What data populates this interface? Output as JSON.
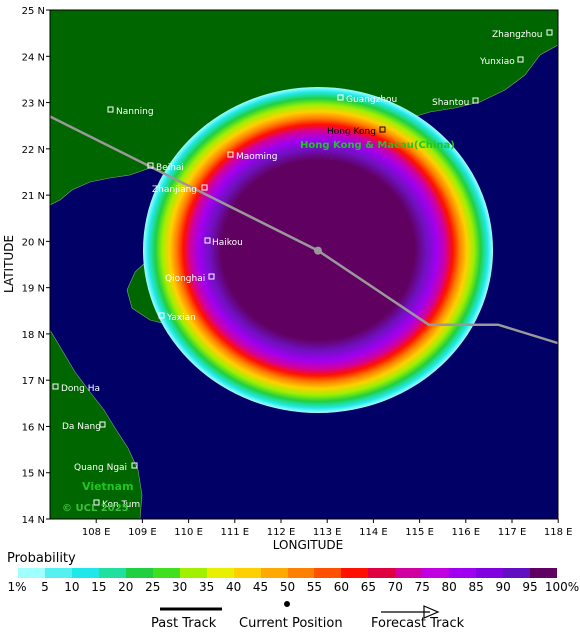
{
  "map": {
    "lat_ticks": [
      "25 N",
      "24 N",
      "23 N",
      "22 N",
      "21 N",
      "20 N",
      "19 N",
      "18 N",
      "17 N",
      "16 N",
      "15 N",
      "14 N"
    ],
    "lon_ticks": [
      "108 E",
      "109 E",
      "110 E",
      "111 E",
      "112 E",
      "113 E",
      "114 E",
      "115 E",
      "116 E",
      "117 E",
      "118 E"
    ],
    "x_axis_title": "LONGITUDE",
    "y_axis_title": "LATITUDE",
    "cities": {
      "zhangzhou": "Zhangzhou",
      "yunxiao": "Yunxiao",
      "nanning": "Nanning",
      "guangzhou": "Guangzhou",
      "shantou": "Shantou",
      "hongkong": "Hong Kong",
      "maoming": "Maoming",
      "beihai": "Beihai",
      "zhanjiang": "Zhanjiang",
      "haikou": "Haikou",
      "qiongdai": "Qionghai",
      "yaxian": "Yaxian",
      "donghoi": "Dong Ha",
      "danang": "Da Nang",
      "quangngai": "Quang Ngai",
      "kontum": "Kon Tum"
    },
    "region_labels": {
      "hk_macau": "Hong Kong & Macau(China)",
      "vietnam": "Vietnam"
    },
    "copyright": "© UCL 2025",
    "colors": {
      "ocean": "#000066",
      "land": "#006600",
      "track": "#999999"
    },
    "track": {
      "past": [
        [
          107.0,
          22.7
        ],
        [
          112.8,
          19.8
        ]
      ],
      "forecast": [
        [
          112.8,
          19.8
        ],
        [
          115.2,
          18.2
        ],
        [
          116.7,
          18.2
        ],
        [
          118.0,
          17.8
        ]
      ],
      "current": [
        112.8,
        19.8
      ]
    }
  },
  "legend": {
    "title": "Probability",
    "labels": [
      "1%",
      "5",
      "10",
      "15",
      "20",
      "25",
      "30",
      "35",
      "40",
      "45",
      "50",
      "55",
      "60",
      "65",
      "70",
      "75",
      "80",
      "85",
      "90",
      "95",
      "100%"
    ],
    "colors": [
      "#a0ffff",
      "#55f0f0",
      "#20e8e8",
      "#20e0a0",
      "#20d040",
      "#40e020",
      "#a0f000",
      "#e8f000",
      "#ffd000",
      "#ffa800",
      "#ff8000",
      "#ff5000",
      "#ff1000",
      "#e00040",
      "#d000a0",
      "#c000e0",
      "#a000f0",
      "#8000e0",
      "#6010c0",
      "#600060"
    ]
  },
  "key": {
    "past": "Past Track",
    "current": "Current Position",
    "forecast": "Forecast Track"
  }
}
